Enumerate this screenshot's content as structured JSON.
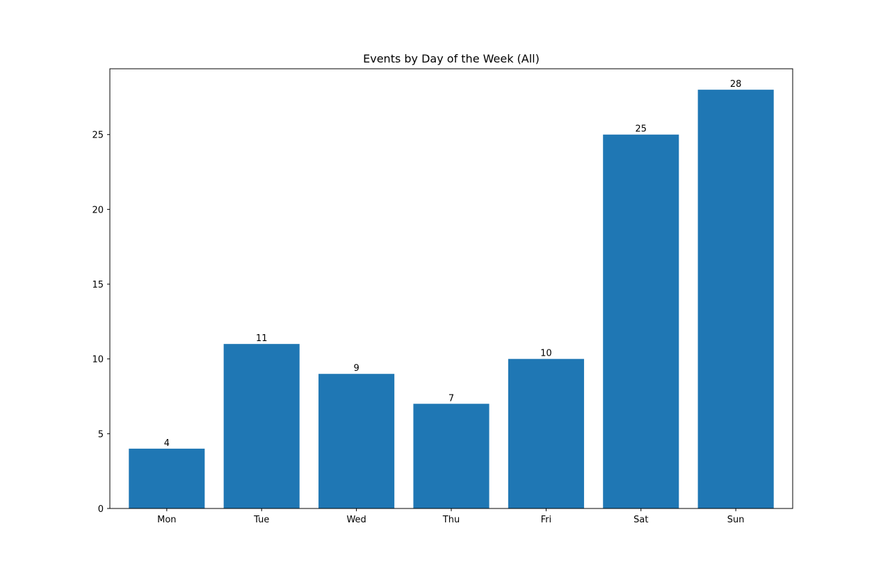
{
  "chart_data": {
    "type": "bar",
    "title": "Events by Day of the Week (All)",
    "xlabel": "",
    "ylabel": "",
    "categories": [
      "Mon",
      "Tue",
      "Wed",
      "Thu",
      "Fri",
      "Sat",
      "Sun"
    ],
    "values": [
      4,
      11,
      9,
      7,
      10,
      25,
      28
    ],
    "data_labels": [
      "4",
      "11",
      "9",
      "7",
      "10",
      "25",
      "28"
    ],
    "ylim": [
      0,
      29.4
    ],
    "yticks": [
      0,
      5,
      10,
      15,
      20,
      25
    ],
    "ytick_labels": [
      "0",
      "5",
      "10",
      "15",
      "20",
      "25"
    ],
    "grid": false,
    "legend": "none",
    "bar_color": "#1f77b4"
  }
}
